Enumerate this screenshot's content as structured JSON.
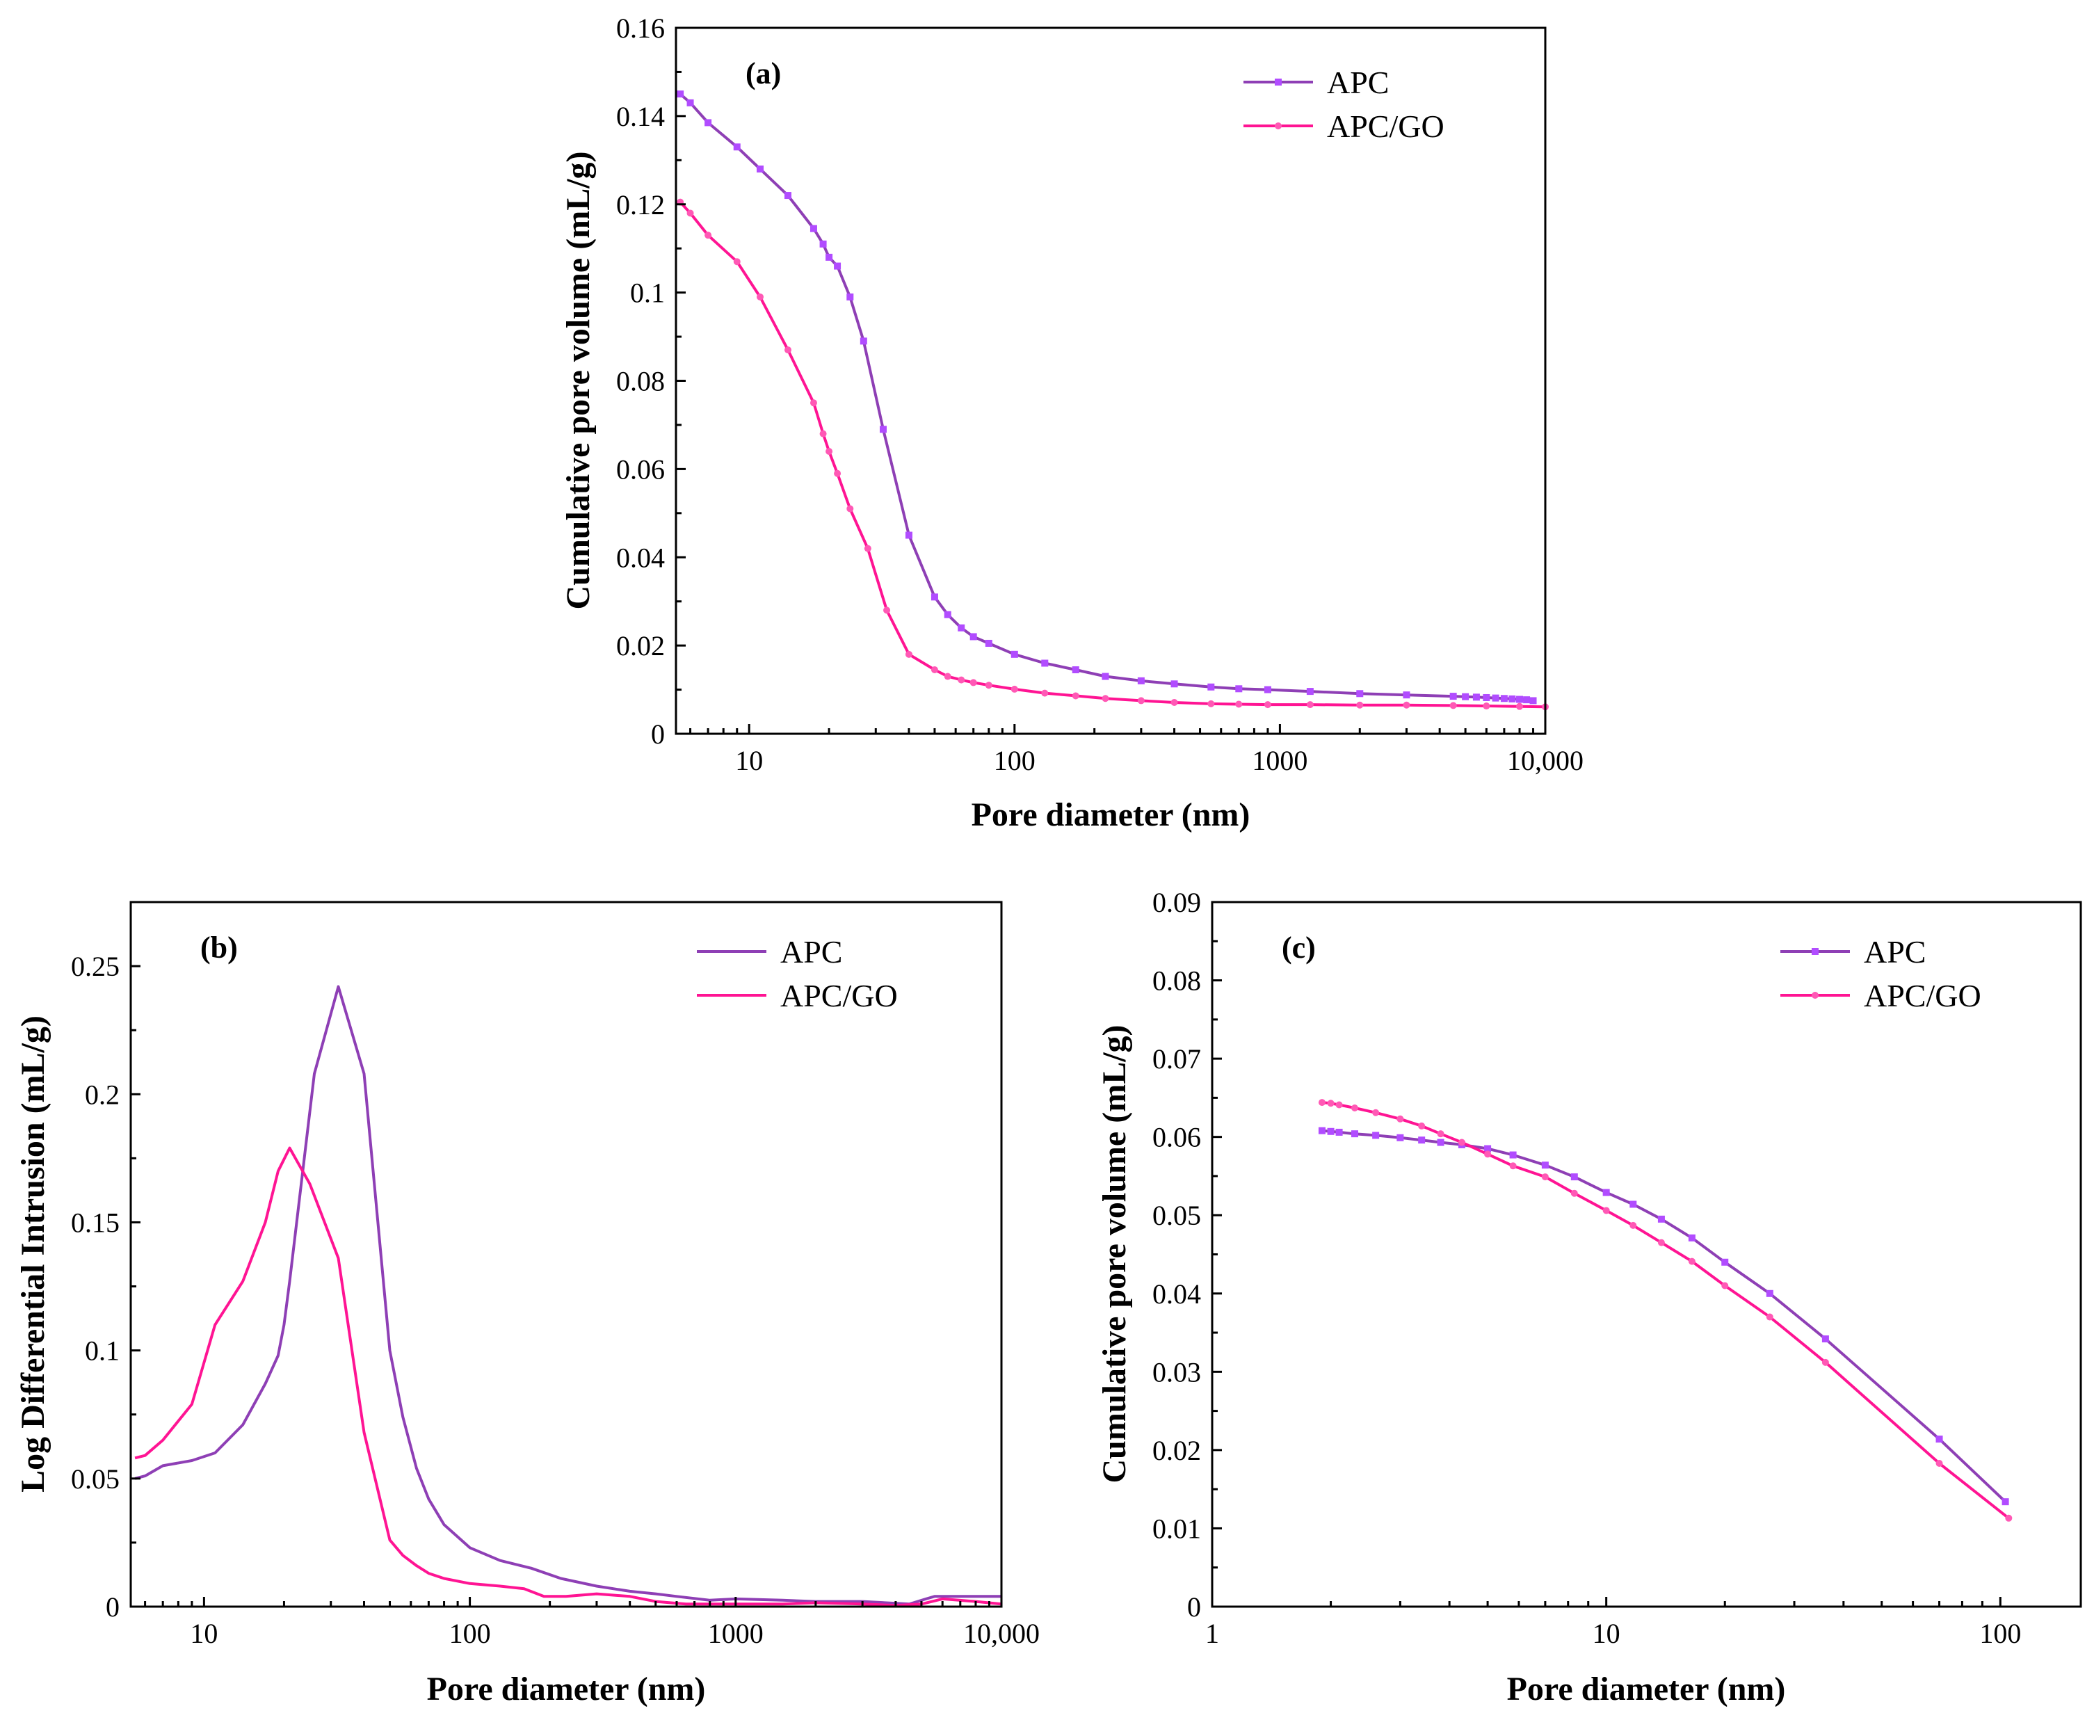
{
  "colors": {
    "apc": "#8E3FB5",
    "apc_marker": "#B14CFF",
    "apcgo": "#FF1493",
    "apcgo_marker": "#FF59B5",
    "axis": "#000000"
  },
  "chart_data": [
    {
      "type": "line",
      "panel": "a",
      "panel_label": "(a)",
      "xlabel": "Pore diameter (nm)",
      "ylabel": "Cumulative pore volume (mL/g)",
      "xscale": "log",
      "xlim": [
        5.3,
        10000
      ],
      "ylim": [
        0,
        0.16
      ],
      "xticks": [
        {
          "v": 10,
          "label": "10"
        },
        {
          "v": 100,
          "label": "100"
        },
        {
          "v": 1000,
          "label": "1000"
        },
        {
          "v": 10000,
          "label": "10,000"
        }
      ],
      "yticks": [
        {
          "v": 0,
          "label": "0"
        },
        {
          "v": 0.02,
          "label": "0.02"
        },
        {
          "v": 0.04,
          "label": "0.04"
        },
        {
          "v": 0.06,
          "label": "0.06"
        },
        {
          "v": 0.08,
          "label": "0.08"
        },
        {
          "v": 0.1,
          "label": "0.1"
        },
        {
          "v": 0.12,
          "label": "0.12"
        },
        {
          "v": 0.14,
          "label": "0.14"
        },
        {
          "v": 0.16,
          "label": "0.16"
        }
      ],
      "legend_position": "top-right",
      "legend_markers": true,
      "series": [
        {
          "name": "APC",
          "key": "apc",
          "markers": true,
          "x": [
            5.5,
            6,
            7,
            9,
            11,
            14,
            17.5,
            19,
            20,
            21.5,
            24,
            27,
            32,
            40,
            50,
            56,
            63,
            70,
            80,
            100,
            130,
            170,
            220,
            300,
            400,
            550,
            700,
            900,
            1300,
            2000,
            3000,
            4500,
            5000,
            5500,
            6000,
            6500,
            7000,
            7500,
            8000,
            8500,
            9000
          ],
          "y": [
            0.145,
            0.143,
            0.1385,
            0.133,
            0.128,
            0.122,
            0.1145,
            0.111,
            0.108,
            0.106,
            0.099,
            0.089,
            0.069,
            0.045,
            0.031,
            0.027,
            0.024,
            0.022,
            0.0205,
            0.018,
            0.016,
            0.0145,
            0.013,
            0.012,
            0.0113,
            0.0106,
            0.0102,
            0.01,
            0.0096,
            0.0091,
            0.0088,
            0.0085,
            0.0084,
            0.0083,
            0.0082,
            0.0081,
            0.008,
            0.0079,
            0.0078,
            0.0077,
            0.0075
          ]
        },
        {
          "name": "APC/GO",
          "key": "apcgo",
          "markers": true,
          "x": [
            5.5,
            6,
            7,
            9,
            11,
            14,
            17.5,
            19,
            20,
            21.5,
            24,
            28,
            33,
            40,
            50,
            56,
            63,
            70,
            80,
            100,
            130,
            170,
            220,
            300,
            400,
            550,
            700,
            900,
            1300,
            2000,
            3000,
            4500,
            6000,
            8000,
            10000
          ],
          "y": [
            0.1205,
            0.118,
            0.113,
            0.107,
            0.099,
            0.087,
            0.075,
            0.068,
            0.064,
            0.059,
            0.051,
            0.042,
            0.028,
            0.018,
            0.0145,
            0.013,
            0.0122,
            0.0116,
            0.011,
            0.0101,
            0.0092,
            0.0086,
            0.008,
            0.0075,
            0.0071,
            0.0068,
            0.0067,
            0.0066,
            0.0066,
            0.0065,
            0.0065,
            0.0064,
            0.0063,
            0.0062,
            0.0061
          ]
        }
      ]
    },
    {
      "type": "line",
      "panel": "b",
      "panel_label": "(b)",
      "xlabel": "Pore diameter (nm)",
      "ylabel": "Log Differential Intrusion (mL/g)",
      "xscale": "log",
      "xlim": [
        5.3,
        10000
      ],
      "ylim": [
        0,
        0.275
      ],
      "xticks": [
        {
          "v": 10,
          "label": "10"
        },
        {
          "v": 100,
          "label": "100"
        },
        {
          "v": 1000,
          "label": "1000"
        },
        {
          "v": 10000,
          "label": "10,000"
        }
      ],
      "yticks": [
        {
          "v": 0,
          "label": "0"
        },
        {
          "v": 0.05,
          "label": "0.05"
        },
        {
          "v": 0.1,
          "label": "0.1"
        },
        {
          "v": 0.15,
          "label": "0.15"
        },
        {
          "v": 0.2,
          "label": "0.2"
        },
        {
          "v": 0.25,
          "label": "0.25"
        }
      ],
      "legend_position": "top-right",
      "legend_markers": false,
      "series": [
        {
          "name": "APC",
          "key": "apc",
          "markers": false,
          "x": [
            5.5,
            6,
            7,
            9,
            11,
            14,
            17,
            19,
            20,
            21,
            26,
            32,
            40,
            50,
            56,
            63,
            70,
            80,
            100,
            130,
            170,
            220,
            300,
            400,
            500,
            600,
            800,
            1000,
            1500,
            2000,
            3000,
            4500,
            5200,
            5600,
            6500,
            8000,
            10000
          ],
          "y": [
            0.05,
            0.051,
            0.055,
            0.057,
            0.06,
            0.071,
            0.087,
            0.098,
            0.11,
            0.127,
            0.208,
            0.242,
            0.208,
            0.1,
            0.074,
            0.054,
            0.042,
            0.032,
            0.023,
            0.018,
            0.015,
            0.011,
            0.008,
            0.006,
            0.005,
            0.004,
            0.0025,
            0.003,
            0.0025,
            0.002,
            0.002,
            0.001,
            0.003,
            0.004,
            0.004,
            0.004,
            0.004
          ]
        },
        {
          "name": "APC/GO",
          "key": "apcgo",
          "markers": false,
          "x": [
            5.5,
            6,
            7,
            9,
            11,
            14,
            17,
            19,
            21,
            25,
            32,
            40,
            50,
            56,
            63,
            70,
            80,
            100,
            130,
            160,
            190,
            230,
            300,
            400,
            500,
            650,
            1000,
            1500,
            2000,
            3000,
            4000,
            5000,
            6000,
            8000,
            10000
          ],
          "y": [
            0.058,
            0.059,
            0.065,
            0.079,
            0.11,
            0.127,
            0.15,
            0.17,
            0.179,
            0.165,
            0.136,
            0.068,
            0.026,
            0.02,
            0.016,
            0.013,
            0.011,
            0.009,
            0.008,
            0.007,
            0.004,
            0.004,
            0.005,
            0.004,
            0.002,
            0.001,
            0.001,
            0.001,
            0.0015,
            0.001,
            0.0005,
            0.001,
            0.003,
            0.002,
            0.001
          ]
        }
      ]
    },
    {
      "type": "line",
      "panel": "c",
      "panel_label": "(c)",
      "xlabel": "Pore diameter (nm)",
      "ylabel": "Cumulative pore volume (mL/g)",
      "xscale": "log",
      "xlim": [
        1,
        160
      ],
      "ylim": [
        0,
        0.09
      ],
      "xticks": [
        {
          "v": 1,
          "label": "1"
        },
        {
          "v": 10,
          "label": "10"
        },
        {
          "v": 100,
          "label": "100"
        }
      ],
      "yticks": [
        {
          "v": 0,
          "label": "0"
        },
        {
          "v": 0.01,
          "label": "0.01"
        },
        {
          "v": 0.02,
          "label": "0.02"
        },
        {
          "v": 0.03,
          "label": "0.03"
        },
        {
          "v": 0.04,
          "label": "0.04"
        },
        {
          "v": 0.05,
          "label": "0.05"
        },
        {
          "v": 0.06,
          "label": "0.06"
        },
        {
          "v": 0.07,
          "label": "0.07"
        },
        {
          "v": 0.08,
          "label": "0.08"
        },
        {
          "v": 0.09,
          "label": "0.09"
        }
      ],
      "legend_position": "top-right",
      "legend_markers": true,
      "series": [
        {
          "name": "APC",
          "key": "apc",
          "markers": true,
          "x": [
            1.9,
            2.0,
            2.1,
            2.3,
            2.6,
            3.0,
            3.4,
            3.8,
            4.3,
            5.0,
            5.8,
            7.0,
            8.3,
            10.0,
            11.7,
            13.8,
            16.5,
            20,
            26,
            36,
            70,
            103
          ],
          "y": [
            0.0608,
            0.0607,
            0.0606,
            0.0604,
            0.0602,
            0.0599,
            0.0596,
            0.0593,
            0.059,
            0.0585,
            0.0577,
            0.0564,
            0.0549,
            0.0529,
            0.0514,
            0.0495,
            0.0471,
            0.044,
            0.04,
            0.0342,
            0.0214,
            0.0134
          ]
        },
        {
          "name": "APC/GO",
          "key": "apcgo",
          "markers": true,
          "x": [
            1.9,
            2.0,
            2.1,
            2.3,
            2.6,
            3.0,
            3.4,
            3.8,
            4.3,
            5.0,
            5.8,
            7.0,
            8.3,
            10.0,
            11.7,
            13.8,
            16.5,
            20,
            26,
            36,
            70,
            105
          ],
          "y": [
            0.0644,
            0.0643,
            0.0641,
            0.0637,
            0.0631,
            0.0623,
            0.0614,
            0.0604,
            0.0593,
            0.0578,
            0.0563,
            0.0549,
            0.0528,
            0.0506,
            0.0487,
            0.0465,
            0.0441,
            0.041,
            0.037,
            0.0312,
            0.0183,
            0.0113
          ]
        }
      ]
    }
  ]
}
